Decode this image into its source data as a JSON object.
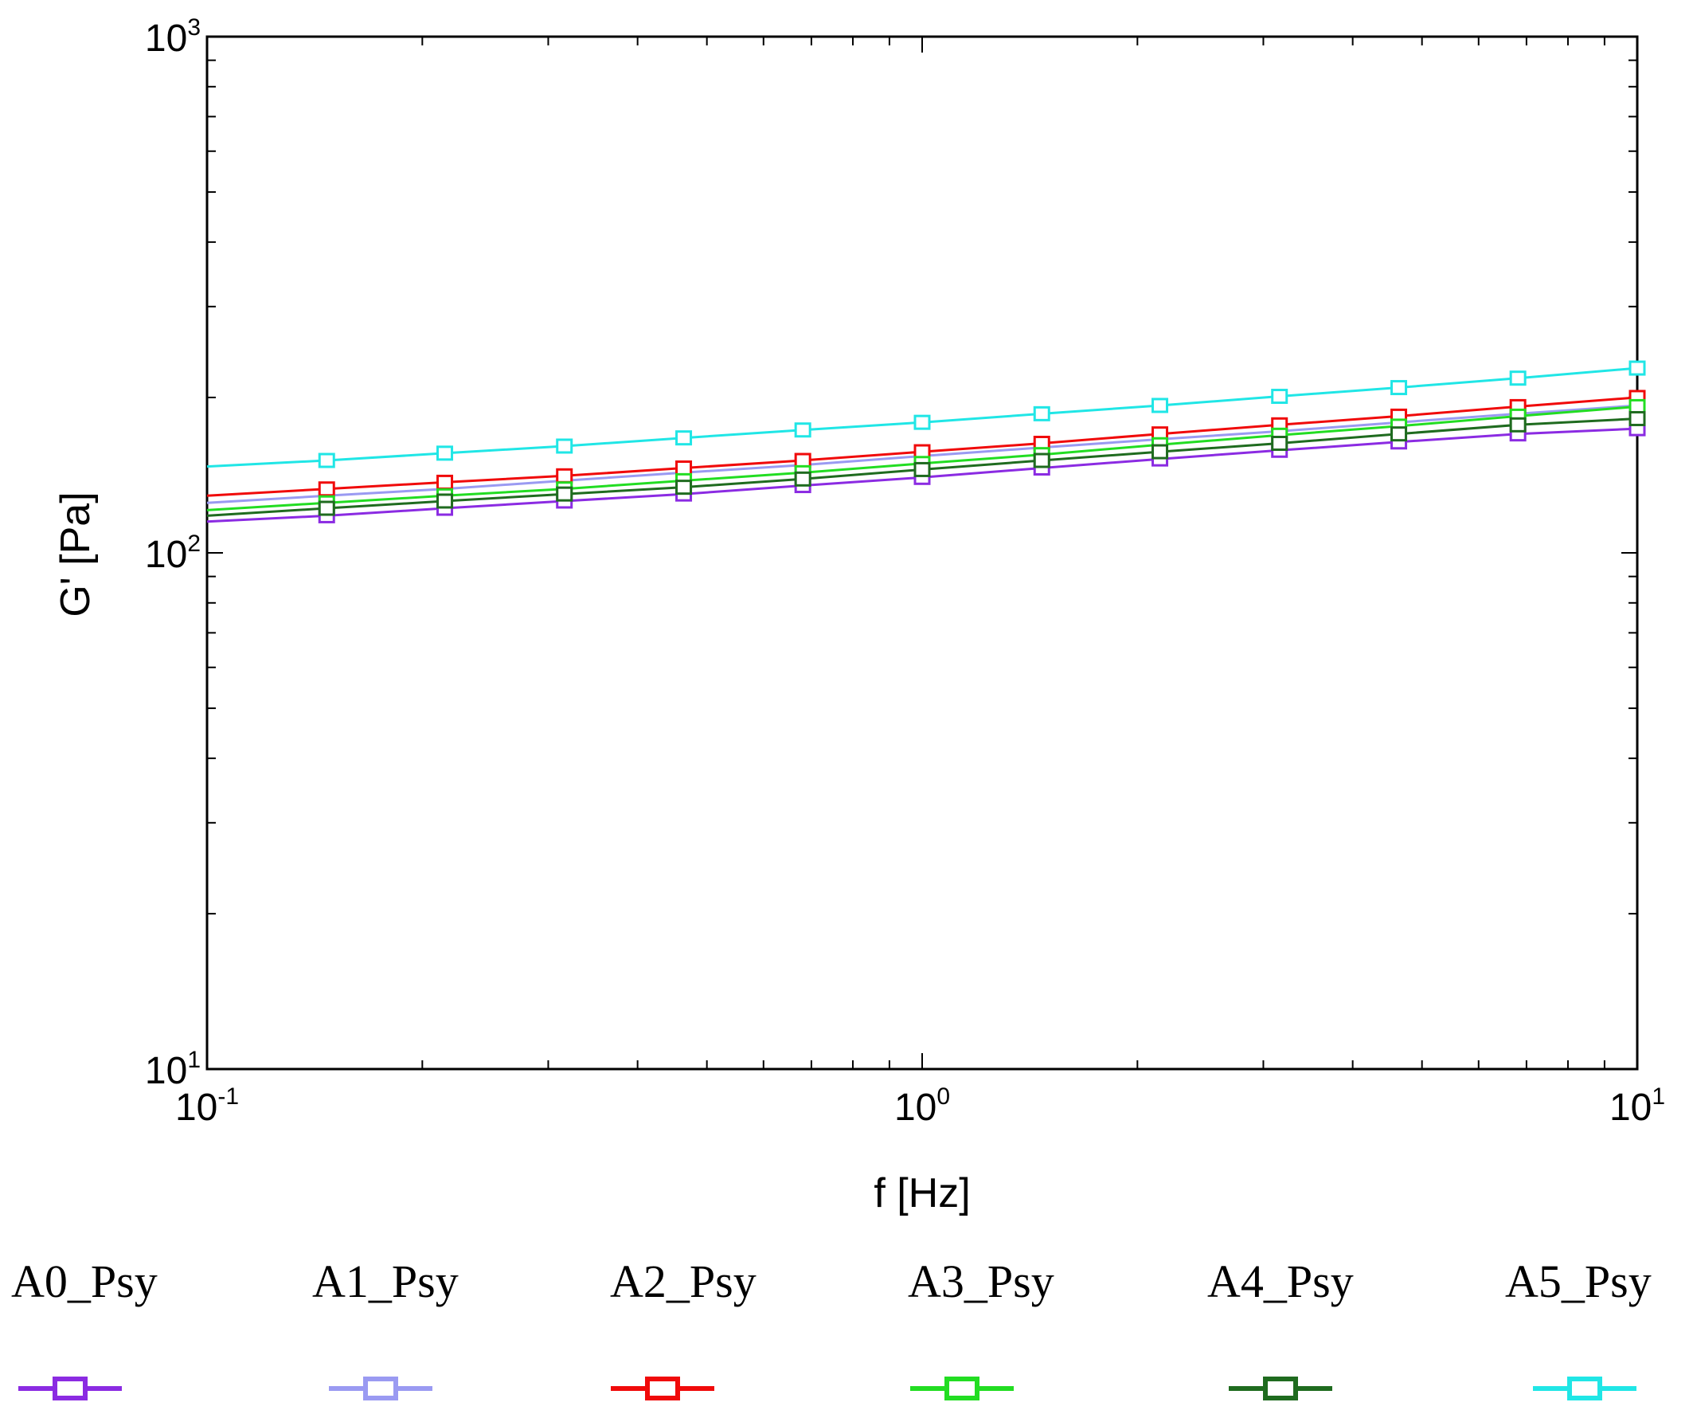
{
  "chart_data": {
    "type": "line",
    "title": "",
    "xlabel": "f [Hz]",
    "ylabel": "G' [Pa]",
    "xscale": "log",
    "yscale": "log",
    "xlim": [
      0.1,
      10
    ],
    "ylim": [
      10,
      1000
    ],
    "x_ticks": [
      {
        "base": "10",
        "exp": "-1"
      },
      {
        "base": "10",
        "exp": "0"
      },
      {
        "base": "10",
        "exp": "1"
      }
    ],
    "y_ticks": [
      {
        "base": "10",
        "exp": "1"
      },
      {
        "base": "10",
        "exp": "2"
      },
      {
        "base": "10",
        "exp": "3"
      }
    ],
    "x": [
      0.1,
      0.147,
      0.215,
      0.316,
      0.464,
      0.681,
      1.0,
      1.47,
      2.15,
      3.16,
      4.64,
      6.81,
      10.0
    ],
    "series": [
      {
        "name": "A0_Psy",
        "color": "#8B2BE2",
        "values": [
          115,
          118,
          122,
          126,
          130,
          135,
          140,
          146,
          152,
          158,
          164,
          170,
          174
        ]
      },
      {
        "name": "A1_Psy",
        "color": "#9A9AF2",
        "values": [
          125,
          129,
          133,
          138,
          143,
          148,
          154,
          160,
          166,
          172,
          179,
          186,
          193
        ]
      },
      {
        "name": "A2_Psy",
        "color": "#F00A0A",
        "values": [
          129,
          133,
          137,
          141,
          146,
          151,
          157,
          163,
          170,
          177,
          184,
          192,
          200
        ]
      },
      {
        "name": "A3_Psy",
        "color": "#22DD22",
        "values": [
          121,
          125,
          129,
          133,
          138,
          143,
          149,
          155,
          162,
          169,
          176,
          184,
          192
        ]
      },
      {
        "name": "A4_Psy",
        "color": "#1F6B1F",
        "values": [
          118,
          122,
          126,
          130,
          134,
          139,
          145,
          151,
          157,
          163,
          170,
          177,
          182
        ]
      },
      {
        "name": "A5_Psy",
        "color": "#20E6E6",
        "values": [
          147,
          151,
          156,
          161,
          167,
          173,
          179,
          186,
          193,
          201,
          209,
          218,
          228
        ]
      }
    ],
    "legend_position": "bottom",
    "grid": false
  }
}
